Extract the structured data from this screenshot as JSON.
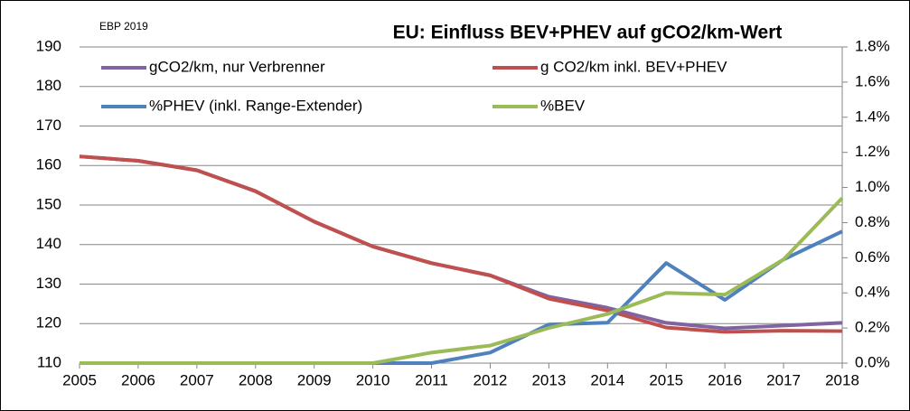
{
  "chart_data": {
    "type": "line",
    "title": "EU: Einfluss BEV+PHEV auf gCO2/km-Wert",
    "annotation": "EBP 2019",
    "x": [
      2005,
      2006,
      2007,
      2008,
      2009,
      2010,
      2011,
      2012,
      2013,
      2014,
      2015,
      2016,
      2017,
      2018
    ],
    "xlim": [
      2005,
      2018
    ],
    "xticks": [
      2005,
      2006,
      2007,
      2008,
      2009,
      2010,
      2011,
      2012,
      2013,
      2014,
      2015,
      2016,
      2017,
      2018
    ],
    "ylim": [
      110,
      190
    ],
    "yticks": [
      110,
      120,
      130,
      140,
      150,
      160,
      170,
      180,
      190
    ],
    "y2lim": [
      0,
      1.8
    ],
    "y2ticks": [
      {
        "value": 0,
        "label": "0.0%"
      },
      {
        "value": 0.2,
        "label": "0.2%"
      },
      {
        "value": 0.4,
        "label": "0.4%"
      },
      {
        "value": 0.6,
        "label": "0.6%"
      },
      {
        "value": 0.8,
        "label": "0.8%"
      },
      {
        "value": 1.0,
        "label": "1.0%"
      },
      {
        "value": 1.2,
        "label": "1.2%"
      },
      {
        "value": 1.4,
        "label": "1.4%"
      },
      {
        "value": 1.6,
        "label": "1.6%"
      },
      {
        "value": 1.8,
        "label": "1.8%"
      }
    ],
    "grid": true,
    "series": [
      {
        "name": "gCO2/km, nur Verbrenner",
        "color": "#8064a2",
        "values": [
          162.3,
          161.2,
          158.8,
          153.5,
          145.8,
          139.5,
          135.3,
          132.2,
          126.8,
          124,
          120.2,
          118.8,
          119.5,
          120.2
        ]
      },
      {
        "name": "g CO2/km inkl. BEV+PHEV",
        "color": "#c0504d",
        "values": [
          162.3,
          161.2,
          158.8,
          153.5,
          145.8,
          139.5,
          135.3,
          132.2,
          126.3,
          123.3,
          119,
          117.9,
          118.2,
          118.1
        ]
      },
      {
        "name": "%PHEV (inkl. Range-Extender)",
        "color": "#4f81bd",
        "axis": "y2",
        "values": [
          0,
          0,
          0,
          0,
          0,
          0,
          0,
          0.06,
          0.22,
          0.23,
          0.57,
          0.36,
          0.59,
          0.75
        ]
      },
      {
        "name": "%BEV",
        "color": "#9bbb59",
        "axis": "y2",
        "values": [
          0,
          0,
          0,
          0,
          0,
          0,
          0.06,
          0.1,
          0.2,
          0.28,
          0.4,
          0.39,
          0.59,
          0.94
        ]
      }
    ]
  }
}
